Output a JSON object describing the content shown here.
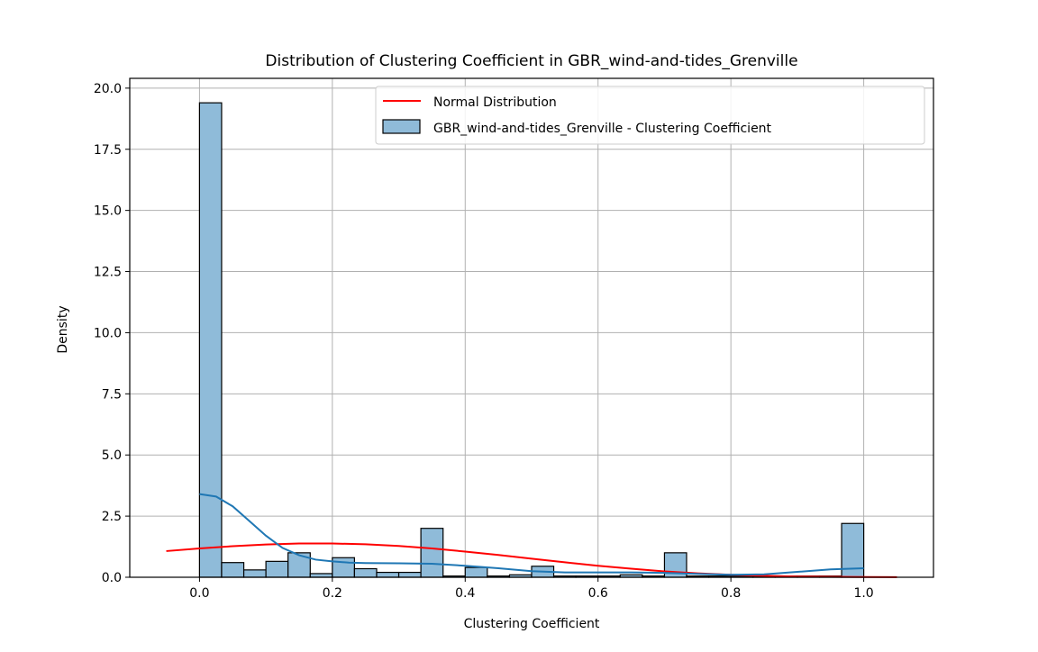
{
  "chart_data": {
    "type": "bar",
    "title": "Distribution of Clustering Coefficient in GBR_wind-and-tides_Grenville",
    "xlabel": "Clustering Coefficient",
    "ylabel": "Density",
    "xlim": [
      -0.105,
      1.105
    ],
    "ylim": [
      0,
      20.4
    ],
    "x_ticks": [
      0.0,
      0.2,
      0.4,
      0.6,
      0.8,
      1.0
    ],
    "x_tick_labels": [
      "0.0",
      "0.2",
      "0.4",
      "0.6",
      "0.8",
      "1.0"
    ],
    "y_ticks": [
      0.0,
      2.5,
      5.0,
      7.5,
      10.0,
      12.5,
      15.0,
      17.5,
      20.0
    ],
    "y_tick_labels": [
      "0.0",
      "2.5",
      "5.0",
      "7.5",
      "10.0",
      "12.5",
      "15.0",
      "17.5",
      "20.0"
    ],
    "grid": true,
    "legend_position": "top-right",
    "legend": [
      {
        "label": "Normal Distribution",
        "kind": "line",
        "color": "#ff0000"
      },
      {
        "label": "GBR_wind-and-tides_Grenville - Clustering Coefficient",
        "kind": "patch",
        "color": "#8fbbd9"
      }
    ],
    "histogram": {
      "bin_edges": [
        0.0,
        0.0333,
        0.0667,
        0.1,
        0.1333,
        0.1667,
        0.2,
        0.2333,
        0.2667,
        0.3,
        0.3333,
        0.3667,
        0.4,
        0.4333,
        0.4667,
        0.5,
        0.5333,
        0.5667,
        0.6,
        0.6333,
        0.6667,
        0.7,
        0.7333,
        0.7667,
        0.8,
        0.8333,
        0.8667,
        0.9,
        0.9333,
        0.9667,
        1.0
      ],
      "values": [
        19.4,
        0.6,
        0.3,
        0.65,
        1.0,
        0.15,
        0.8,
        0.35,
        0.2,
        0.2,
        2.0,
        0.05,
        0.4,
        0.05,
        0.1,
        0.45,
        0.05,
        0.05,
        0.05,
        0.1,
        0.05,
        1.0,
        0.05,
        0.05,
        0.05,
        0.05,
        0.05,
        0.05,
        0.05,
        2.2
      ],
      "fill": "#8fbbd9",
      "edge": "#000000"
    },
    "series": [
      {
        "name": "Normal Distribution",
        "type": "line",
        "color": "#ff0000",
        "x": [
          -0.05,
          0.0,
          0.05,
          0.1,
          0.15,
          0.2,
          0.25,
          0.3,
          0.35,
          0.4,
          0.45,
          0.5,
          0.55,
          0.6,
          0.65,
          0.7,
          0.75,
          0.8,
          0.85,
          0.9,
          0.95,
          1.0,
          1.05
        ],
        "y": [
          1.07,
          1.18,
          1.27,
          1.34,
          1.38,
          1.38,
          1.35,
          1.28,
          1.18,
          1.05,
          0.91,
          0.76,
          0.61,
          0.47,
          0.35,
          0.24,
          0.16,
          0.1,
          0.06,
          0.03,
          0.02,
          0.01,
          0.005
        ]
      },
      {
        "type": "line",
        "color": "#1f77b4",
        "x": [
          0.0,
          0.025,
          0.05,
          0.075,
          0.1,
          0.125,
          0.15,
          0.175,
          0.2,
          0.225,
          0.25,
          0.3,
          0.35,
          0.4,
          0.45,
          0.5,
          0.55,
          0.6,
          0.65,
          0.7,
          0.75,
          0.8,
          0.85,
          0.9,
          0.95,
          1.0
        ],
        "y": [
          3.4,
          3.3,
          2.9,
          2.3,
          1.7,
          1.2,
          0.9,
          0.72,
          0.65,
          0.6,
          0.58,
          0.57,
          0.55,
          0.47,
          0.37,
          0.25,
          0.2,
          0.2,
          0.2,
          0.18,
          0.14,
          0.1,
          0.12,
          0.22,
          0.32,
          0.37
        ]
      }
    ]
  }
}
